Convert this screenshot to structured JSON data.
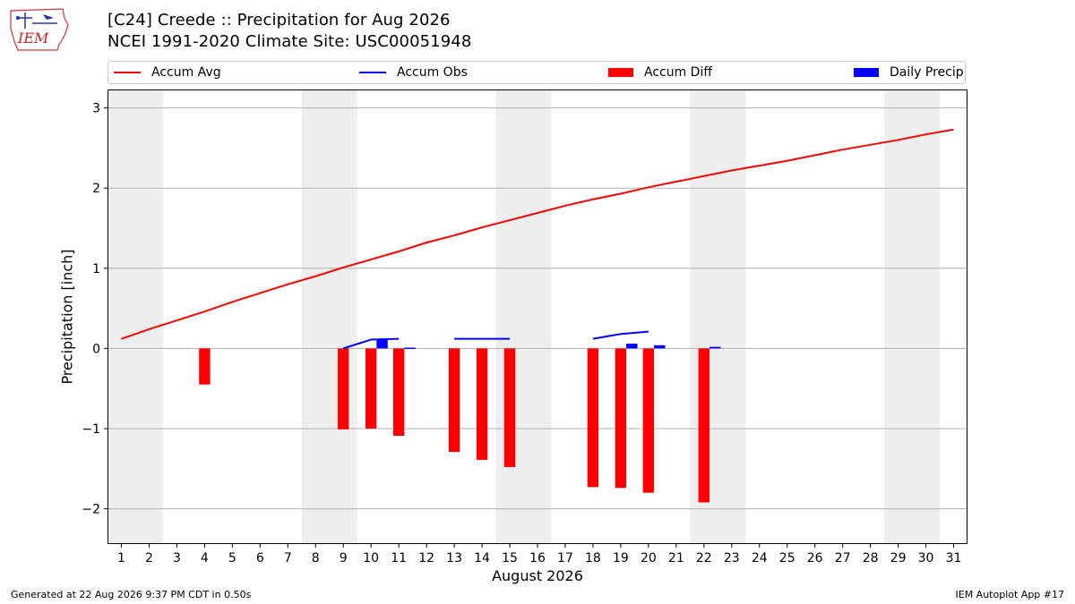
{
  "logo": {
    "text": "IEM"
  },
  "title": {
    "line1": "[C24] Creede :: Precipitation for Aug 2026",
    "line2": "NCEI 1991-2020 Climate Site: USC00051948"
  },
  "footer": {
    "left": "Generated at 22 Aug 2026 9:37 PM CDT in 0.50s",
    "right": "IEM Autoplot App #17"
  },
  "colors": {
    "accum_avg": "#ff0000",
    "accum_obs": "#0000ff",
    "accum_diff": "#ff0000",
    "daily_precip": "#0000ff",
    "weekend_shade": "#eeeeee",
    "grid": "#b0b0b0"
  },
  "chart_data": {
    "type": "bar",
    "xlabel": "August 2026",
    "ylabel": "Precipitation [inch]",
    "xlim": [
      0.5,
      31.5
    ],
    "ylim": [
      -2.44,
      3.23
    ],
    "grid": "horizontal",
    "legend_position": "top",
    "x_ticks": [
      1,
      2,
      3,
      4,
      5,
      6,
      7,
      8,
      9,
      10,
      11,
      12,
      13,
      14,
      15,
      16,
      17,
      18,
      19,
      20,
      21,
      22,
      23,
      24,
      25,
      26,
      27,
      28,
      29,
      30,
      31
    ],
    "y_ticks": [
      {
        "value": 3,
        "label": "3"
      },
      {
        "value": 2,
        "label": "2"
      },
      {
        "value": 1,
        "label": "1"
      },
      {
        "value": 0,
        "label": "0"
      },
      {
        "value": -1,
        "label": "−1"
      },
      {
        "value": -2,
        "label": "−2"
      }
    ],
    "shaded_day_ranges": [
      [
        0.5,
        2.5
      ],
      [
        7.5,
        9.5
      ],
      [
        14.5,
        16.5
      ],
      [
        21.5,
        23.5
      ],
      [
        28.5,
        30.5
      ]
    ],
    "series": [
      {
        "name": "Accum Avg",
        "kind": "line",
        "x": [
          1,
          2,
          3,
          4,
          5,
          6,
          7,
          8,
          9,
          10,
          11,
          12,
          13,
          14,
          15,
          16,
          17,
          18,
          19,
          20,
          21,
          22,
          23,
          24,
          25,
          26,
          27,
          28,
          29,
          30,
          31
        ],
        "values": [
          0.12,
          0.24,
          0.35,
          0.46,
          0.58,
          0.69,
          0.8,
          0.9,
          1.01,
          1.11,
          1.21,
          1.32,
          1.41,
          1.51,
          1.6,
          1.69,
          1.78,
          1.86,
          1.93,
          2.01,
          2.08,
          2.15,
          2.22,
          2.28,
          2.34,
          2.41,
          2.48,
          2.54,
          2.6,
          2.67,
          2.73
        ]
      },
      {
        "name": "Accum Obs",
        "kind": "line",
        "segments": [
          {
            "x": [
              9,
              10,
              11
            ],
            "values": [
              0.0,
              0.11,
              0.12
            ]
          },
          {
            "x": [
              13,
              14,
              15
            ],
            "values": [
              0.12,
              0.12,
              0.12
            ]
          },
          {
            "x": [
              18,
              19,
              20
            ],
            "values": [
              0.12,
              0.18,
              0.21
            ]
          }
        ]
      },
      {
        "name": "Accum Diff",
        "kind": "bar",
        "x": [
          4,
          9,
          10,
          11,
          13,
          14,
          15,
          18,
          19,
          20,
          22
        ],
        "values": [
          -0.45,
          -1.01,
          -1.0,
          -1.09,
          -1.29,
          -1.39,
          -1.48,
          -1.73,
          -1.74,
          -1.8,
          -1.92
        ]
      },
      {
        "name": "Daily Precip",
        "kind": "bar",
        "x": [
          10,
          11,
          19,
          20,
          22
        ],
        "values": [
          0.11,
          0.01,
          0.06,
          0.04,
          0.02
        ]
      }
    ]
  }
}
